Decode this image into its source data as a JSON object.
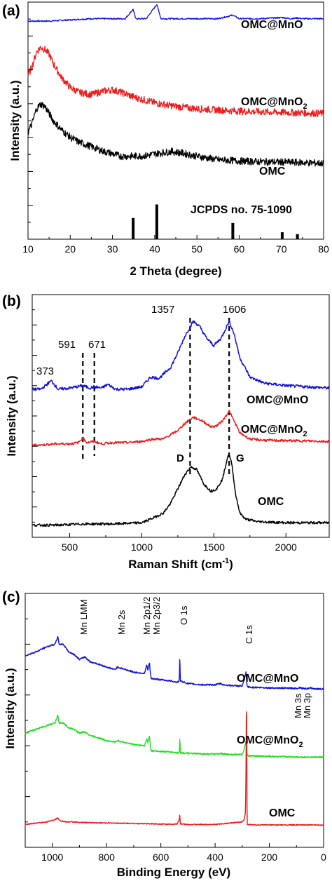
{
  "chart_data": [
    {
      "type": "line",
      "panel_label": "(a)",
      "xlabel": "2 Theta (degree)",
      "ylabel": "Intensity (a.u.)",
      "xlim": [
        10,
        80
      ],
      "xticks": [
        "10",
        "20",
        "30",
        "40",
        "50",
        "60",
        "70",
        "80"
      ],
      "series": [
        {
          "name": "OMC@MnO",
          "color": "#1010dd",
          "x": [
            10,
            15,
            20,
            25,
            30,
            33,
            34.9,
            35.5,
            38,
            40.5,
            41.5,
            45,
            50,
            55,
            58.5,
            60,
            65,
            70.3,
            72,
            73.8,
            75,
            80
          ],
          "y": [
            0.92,
            0.92,
            0.925,
            0.93,
            0.93,
            0.93,
            0.97,
            0.93,
            0.93,
            0.99,
            0.93,
            0.93,
            0.93,
            0.93,
            0.945,
            0.93,
            0.93,
            0.935,
            0.93,
            0.933,
            0.93,
            0.93
          ]
        },
        {
          "name": "OMC@MnO2",
          "color": "#ee1c1c",
          "x": [
            10,
            11,
            12,
            13,
            14,
            15,
            16,
            18,
            20,
            22,
            25,
            28,
            30,
            32,
            35,
            40,
            45,
            50,
            55,
            60,
            65,
            70,
            75,
            80
          ],
          "y": [
            0.69,
            0.73,
            0.79,
            0.81,
            0.8,
            0.78,
            0.74,
            0.68,
            0.64,
            0.62,
            0.61,
            0.625,
            0.63,
            0.62,
            0.6,
            0.575,
            0.56,
            0.55,
            0.545,
            0.54,
            0.537,
            0.535,
            0.533,
            0.53
          ]
        },
        {
          "name": "OMC",
          "color": "#000000",
          "x": [
            10,
            11,
            12,
            13,
            14,
            15,
            16,
            18,
            20,
            22,
            25,
            28,
            30,
            32,
            35,
            38,
            40,
            42,
            44,
            46,
            50,
            55,
            60,
            65,
            70,
            75,
            80
          ],
          "y": [
            0.45,
            0.49,
            0.55,
            0.57,
            0.56,
            0.53,
            0.5,
            0.46,
            0.43,
            0.41,
            0.39,
            0.37,
            0.36,
            0.35,
            0.35,
            0.352,
            0.36,
            0.365,
            0.37,
            0.365,
            0.35,
            0.335,
            0.33,
            0.327,
            0.325,
            0.323,
            0.32
          ]
        }
      ],
      "reference": {
        "label": "JCPDS no. 75-1090",
        "positions": [
          34.9,
          40.5,
          58.5,
          70.2,
          73.8
        ],
        "heights": [
          0.55,
          0.9,
          0.42,
          0.18,
          0.13
        ]
      },
      "annotations": [
        "OMC@MnO",
        "OMC@MnO",
        "OMC"
      ]
    },
    {
      "type": "line",
      "panel_label": "(b)",
      "xlabel": "Raman Shift (cm",
      "xlabel_sup": "-1",
      "xlabel_end": ")",
      "ylabel": "Intensity (a.u.)",
      "xlim": [
        240,
        2300
      ],
      "xticks": [
        "500",
        "1000",
        "1500",
        "2000"
      ],
      "xtick_values": [
        500,
        1000,
        1500,
        2000
      ],
      "series": [
        {
          "name": "OMC@MnO",
          "color": "#1010dd",
          "x": [
            240,
            300,
            373,
            420,
            500,
            591,
            640,
            671,
            720,
            765,
            820,
            900,
            1000,
            1060,
            1120,
            1200,
            1250,
            1300,
            1357,
            1400,
            1450,
            1500,
            1550,
            1606,
            1640,
            1680,
            1750,
            1850,
            2000,
            2150,
            2300
          ],
          "y": [
            0.61,
            0.61,
            0.645,
            0.61,
            0.615,
            0.625,
            0.615,
            0.62,
            0.615,
            0.63,
            0.61,
            0.61,
            0.62,
            0.66,
            0.655,
            0.7,
            0.76,
            0.83,
            0.89,
            0.87,
            0.82,
            0.79,
            0.82,
            0.89,
            0.84,
            0.74,
            0.66,
            0.635,
            0.625,
            0.62,
            0.615
          ]
        },
        {
          "name": "OMC@MnO2",
          "color": "#ee1c1c",
          "x": [
            240,
            300,
            400,
            500,
            560,
            591,
            620,
            671,
            720,
            800,
            900,
            1000,
            1080,
            1150,
            1250,
            1300,
            1357,
            1420,
            1480,
            1520,
            1560,
            1606,
            1640,
            1680,
            1750,
            1850,
            2000,
            2150,
            2300
          ],
          "y": [
            0.38,
            0.38,
            0.385,
            0.385,
            0.39,
            0.41,
            0.39,
            0.395,
            0.385,
            0.39,
            0.39,
            0.395,
            0.405,
            0.405,
            0.44,
            0.47,
            0.495,
            0.48,
            0.455,
            0.46,
            0.48,
            0.52,
            0.48,
            0.43,
            0.405,
            0.4,
            0.398,
            0.397,
            0.395
          ]
        },
        {
          "name": "OMC",
          "color": "#000000",
          "x": [
            240,
            400,
            600,
            800,
            1000,
            1080,
            1150,
            1200,
            1250,
            1300,
            1340,
            1380,
            1430,
            1480,
            1520,
            1560,
            1595,
            1606,
            1625,
            1650,
            1680,
            1720,
            1800,
            1900,
            2000,
            2150,
            2300
          ],
          "y": [
            0.05,
            0.05,
            0.055,
            0.055,
            0.06,
            0.08,
            0.1,
            0.14,
            0.2,
            0.26,
            0.29,
            0.28,
            0.22,
            0.19,
            0.2,
            0.24,
            0.33,
            0.34,
            0.3,
            0.18,
            0.1,
            0.075,
            0.065,
            0.062,
            0.06,
            0.06,
            0.06
          ]
        }
      ],
      "peak_labels": [
        "373",
        "591",
        "671",
        "1357",
        "1606"
      ],
      "band_labels": [
        "D",
        "G"
      ],
      "dashed_lines": [
        591,
        671,
        1335,
        1606
      ],
      "annotations": [
        "OMC@MnO",
        "OMC@MnO",
        "OMC"
      ]
    },
    {
      "type": "line",
      "panel_label": "(c)",
      "xlabel": "Binding Energy (eV)",
      "ylabel": "Intensity (a.u.)",
      "xlim": [
        1100,
        0
      ],
      "xticks": [
        "1000",
        "800",
        "600",
        "400",
        "200",
        "0"
      ],
      "xtick_values": [
        1000,
        800,
        600,
        400,
        200,
        0
      ],
      "series": [
        {
          "name": "OMC@MnO",
          "color": "#1010dd",
          "x": [
            1100,
            1060,
            1020,
            990,
            980,
            975,
            960,
            940,
            920,
            900,
            880,
            860,
            840,
            800,
            770,
            760,
            700,
            660,
            652,
            648,
            642,
            640,
            636,
            600,
            560,
            540,
            532,
            530,
            528,
            500,
            450,
            400,
            380,
            370,
            350,
            300,
            292,
            286,
            284,
            282,
            270,
            250,
            200,
            150,
            100,
            84,
            80,
            60,
            50,
            47,
            40,
            20,
            0
          ],
          "y": [
            0.755,
            0.77,
            0.79,
            0.8,
            0.83,
            0.8,
            0.8,
            0.77,
            0.76,
            0.74,
            0.75,
            0.73,
            0.725,
            0.71,
            0.7,
            0.71,
            0.69,
            0.685,
            0.72,
            0.695,
            0.73,
            0.7,
            0.665,
            0.66,
            0.655,
            0.65,
            0.655,
            0.76,
            0.655,
            0.645,
            0.64,
            0.64,
            0.645,
            0.64,
            0.638,
            0.635,
            0.66,
            0.69,
            0.66,
            0.633,
            0.63,
            0.63,
            0.628,
            0.627,
            0.626,
            0.63,
            0.626,
            0.625,
            0.626,
            0.628,
            0.625,
            0.624,
            0.624
          ]
        },
        {
          "name": "OMC@MnO2",
          "color": "#22dd22",
          "x": [
            1100,
            1060,
            1020,
            990,
            980,
            975,
            960,
            940,
            920,
            900,
            880,
            860,
            840,
            800,
            770,
            760,
            700,
            660,
            652,
            648,
            642,
            640,
            636,
            600,
            560,
            540,
            532,
            530,
            528,
            500,
            450,
            400,
            380,
            370,
            350,
            300,
            292,
            286,
            284,
            282,
            270,
            250,
            200,
            150,
            100,
            50,
            0
          ],
          "y": [
            0.45,
            0.465,
            0.48,
            0.49,
            0.52,
            0.49,
            0.49,
            0.47,
            0.465,
            0.45,
            0.455,
            0.44,
            0.435,
            0.42,
            0.415,
            0.42,
            0.405,
            0.4,
            0.43,
            0.41,
            0.44,
            0.415,
            0.38,
            0.378,
            0.375,
            0.372,
            0.375,
            0.44,
            0.372,
            0.37,
            0.368,
            0.367,
            0.37,
            0.367,
            0.366,
            0.365,
            0.39,
            0.42,
            0.39,
            0.362,
            0.36,
            0.36,
            0.358,
            0.357,
            0.356,
            0.355,
            0.355
          ]
        },
        {
          "name": "OMC",
          "color": "#ee1c1c",
          "x": [
            1100,
            1060,
            1020,
            990,
            980,
            970,
            950,
            920,
            900,
            850,
            800,
            750,
            700,
            650,
            600,
            560,
            540,
            532,
            530,
            528,
            500,
            450,
            400,
            350,
            300,
            292,
            288,
            286,
            284,
            283,
            282,
            270,
            250,
            200,
            150,
            100,
            50,
            0
          ],
          "y": [
            0.09,
            0.095,
            0.1,
            0.11,
            0.115,
            0.105,
            0.1,
            0.1,
            0.098,
            0.097,
            0.096,
            0.095,
            0.094,
            0.093,
            0.092,
            0.09,
            0.092,
            0.11,
            0.13,
            0.092,
            0.09,
            0.09,
            0.09,
            0.095,
            0.1,
            0.11,
            0.14,
            0.3,
            0.68,
            0.3,
            0.09,
            0.09,
            0.088,
            0.088,
            0.088,
            0.088,
            0.088,
            0.088
          ]
        }
      ],
      "peak_labels": [
        "Mn LMM",
        "Mn 2s",
        "Mn 2p1/2",
        "Mn 2p3/2",
        "O 1s",
        "C 1s",
        "Mn 3s",
        "Mn 3p"
      ],
      "annotations": [
        "OMC@MnO",
        "OMC@MnO",
        "OMC"
      ]
    }
  ]
}
